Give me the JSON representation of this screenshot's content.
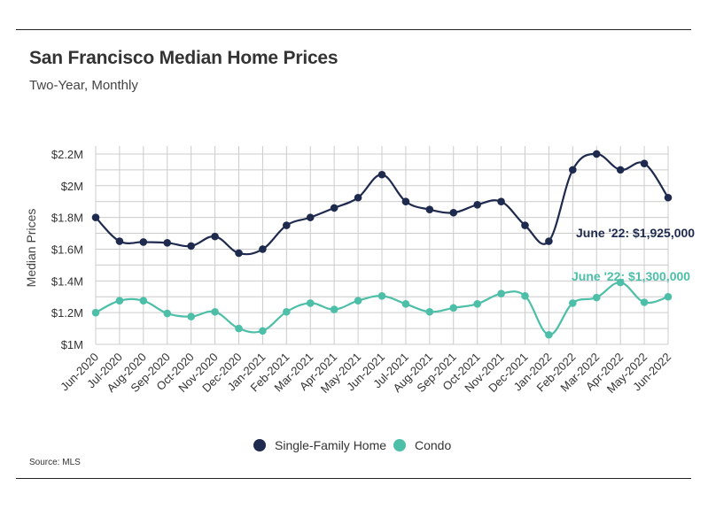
{
  "header": {
    "title": "San Francisco Median Home Prices",
    "subtitle": "Two-Year, Monthly"
  },
  "footer": {
    "source": "Source:  MLS"
  },
  "colors": {
    "single_family": "#1f2a4f",
    "condo": "#4dbfa8",
    "grid": "#cccccc"
  },
  "chart_data": {
    "type": "line",
    "title": "San Francisco Median Home Prices",
    "subtitle": "Two-Year, Monthly",
    "ylabel": "Median Prices",
    "xlabel": "",
    "ylim": [
      1000000,
      2200000
    ],
    "y_ticks": [
      1000000,
      1200000,
      1400000,
      1600000,
      1800000,
      2000000,
      2200000
    ],
    "y_tick_labels": [
      "$1M",
      "$1.2M",
      "$1.4M",
      "$1.6M",
      "$1.8M",
      "$2M",
      "$2.2M"
    ],
    "grid": true,
    "legend_position": "bottom-center",
    "categories": [
      "Jun-2020",
      "Jul-2020",
      "Aug-2020",
      "Sep-2020",
      "Oct-2020",
      "Nov-2020",
      "Dec-2020",
      "Jan-2021",
      "Feb-2021",
      "Mar-2021",
      "Apr-2021",
      "May-2021",
      "Jun-2021",
      "Jul-2021",
      "Aug-2021",
      "Sep-2021",
      "Oct-2021",
      "Nov-2021",
      "Dec-2021",
      "Jan-2022",
      "Feb-2022",
      "Mar-2022",
      "Apr-2022",
      "May-2022",
      "Jun-2022"
    ],
    "series": [
      {
        "name": "Single-Family Home",
        "color": "#1f2a4f",
        "values": [
          1800000,
          1650000,
          1645000,
          1640000,
          1620000,
          1680000,
          1575000,
          1600000,
          1750000,
          1800000,
          1860000,
          1925000,
          2070000,
          1900000,
          1850000,
          1830000,
          1880000,
          1900000,
          1750000,
          1650000,
          2100000,
          2200000,
          2100000,
          2140000,
          1925000
        ]
      },
      {
        "name": "Condo",
        "color": "#4dbfa8",
        "values": [
          1200000,
          1275000,
          1275000,
          1195000,
          1175000,
          1205000,
          1100000,
          1085000,
          1205000,
          1260000,
          1220000,
          1275000,
          1305000,
          1255000,
          1205000,
          1230000,
          1255000,
          1320000,
          1305000,
          1060000,
          1260000,
          1295000,
          1390000,
          1265000,
          1300000
        ]
      }
    ],
    "annotations": [
      {
        "series": "Single-Family Home",
        "text": "June '22: $1,925,000",
        "color": "#1f2a4f"
      },
      {
        "series": "Condo",
        "text": "June '22: $1,300,000",
        "color": "#4dbfa8"
      }
    ]
  }
}
